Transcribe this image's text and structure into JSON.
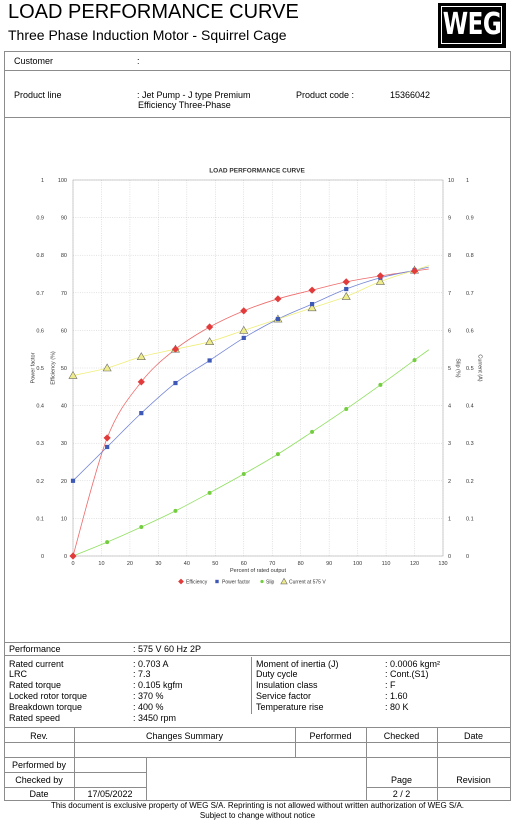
{
  "header": {
    "title": "LOAD PERFORMANCE CURVE",
    "subtitle": "Three Phase Induction Motor - Squirrel Cage",
    "logo_text": "WEG"
  },
  "customer": {
    "label": "Customer",
    "value": ":"
  },
  "product": {
    "line_label": "Product line",
    "line_value_1": ": Jet Pump - J type Premium",
    "line_value_2": "Efficiency Three-Phase",
    "code_label": "Product code :",
    "code_value": "15366042"
  },
  "performance": {
    "label": "Performance",
    "value": ": 575 V 60 Hz 2P",
    "left": [
      {
        "label": "Rated current",
        "value": ": 0.703 A"
      },
      {
        "label": "LRC",
        "value": ": 7.3"
      },
      {
        "label": "Rated torque",
        "value": ": 0.105 kgfm"
      },
      {
        "label": "Locked rotor torque",
        "value": ": 370 %"
      },
      {
        "label": "Breakdown torque",
        "value": ": 400 %"
      },
      {
        "label": "Rated speed",
        "value": ": 3450 rpm"
      }
    ],
    "right": [
      {
        "label": "Moment of inertia (J)",
        "value": ": 0.0006 kgm²"
      },
      {
        "label": "Duty cycle",
        "value": ": Cont.(S1)"
      },
      {
        "label": "Insulation class",
        "value": ": F"
      },
      {
        "label": "Service factor",
        "value": ": 1.60"
      },
      {
        "label": "Temperature rise",
        "value": ": 80 K"
      }
    ]
  },
  "revisions": {
    "headers": [
      "Rev.",
      "Changes Summary",
      "Performed",
      "Checked",
      "Date"
    ]
  },
  "signoff": {
    "performed_by_label": "Performed by",
    "checked_by_label": "Checked by",
    "date_label": "Date",
    "date_value": "17/05/2022",
    "page_label": "Page",
    "page_value": "2 / 2",
    "revision_label": "Revision"
  },
  "footer": {
    "line1": "This document is exclusive property of WEG S/A. Reprinting is not allowed without written authorization of WEG S/A.",
    "line2": "Subject to change without notice"
  },
  "chart_data": {
    "type": "line",
    "title": "LOAD PERFORMANCE CURVE",
    "xlabel": "Percent of rated output",
    "xlim": [
      0,
      130
    ],
    "x_ticks": [
      0,
      10,
      20,
      30,
      40,
      50,
      60,
      70,
      80,
      90,
      100,
      110,
      120,
      130
    ],
    "grid": true,
    "legend_position": "bottom",
    "y_axes": [
      {
        "id": "power_factor",
        "label": "Power factor",
        "side": "left-outer",
        "range": [
          0,
          1
        ],
        "ticks": [
          "0",
          "0.1",
          "0.2",
          "0.3",
          "0.4",
          "0.5",
          "0.6",
          "0.7",
          "0.8",
          "0.9",
          "1"
        ]
      },
      {
        "id": "efficiency",
        "label": "Efficiency (%)",
        "side": "left-inner",
        "range": [
          0,
          100
        ],
        "ticks": [
          "0",
          "10",
          "20",
          "30",
          "40",
          "50",
          "60",
          "70",
          "80",
          "90",
          "100"
        ]
      },
      {
        "id": "slip",
        "label": "Slip (%)",
        "side": "right-inner",
        "range": [
          0,
          10
        ],
        "ticks": [
          "0",
          "1",
          "2",
          "3",
          "4",
          "5",
          "6",
          "7",
          "8",
          "9",
          "10"
        ]
      },
      {
        "id": "current",
        "label": "Current (A)",
        "side": "right-outer",
        "range": [
          0,
          1
        ],
        "ticks": [
          "0",
          "0.1",
          "0.2",
          "0.3",
          "0.4",
          "0.5",
          "0.6",
          "0.7",
          "0.8",
          "0.9",
          "1"
        ]
      }
    ],
    "x": [
      0,
      12,
      24,
      36,
      48,
      60,
      72,
      84,
      96,
      108,
      120
    ],
    "series": [
      {
        "name": "Efficiency",
        "axis": "efficiency",
        "marker": "diamond",
        "color": "#e23b3b",
        "line_color": "#ee6a6a",
        "values": [
          0,
          31.4,
          46.3,
          55.0,
          60.9,
          65.2,
          68.4,
          70.7,
          72.9,
          74.5,
          75.8
        ]
      },
      {
        "name": "Power factor",
        "axis": "power_factor",
        "marker": "square",
        "color": "#3d58b5",
        "line_color": "#7486d6",
        "values": [
          0.2,
          0.29,
          0.38,
          0.46,
          0.52,
          0.58,
          0.63,
          0.67,
          0.71,
          0.74,
          0.76
        ]
      },
      {
        "name": "Slip",
        "axis": "slip",
        "marker": "circle",
        "color": "#74cc40",
        "line_color": "#8fe05f",
        "values": [
          0,
          0.37,
          0.77,
          1.2,
          1.68,
          2.18,
          2.71,
          3.3,
          3.91,
          4.55,
          5.21
        ]
      },
      {
        "name": "Current at 575 V",
        "axis": "current",
        "marker": "triangle",
        "color": "#efec8c",
        "marker_stroke": "#6b6b6b",
        "line_color": "#efee7a",
        "values": [
          0.48,
          0.5,
          0.53,
          0.55,
          0.57,
          0.6,
          0.63,
          0.66,
          0.69,
          0.73,
          0.76
        ]
      }
    ]
  }
}
